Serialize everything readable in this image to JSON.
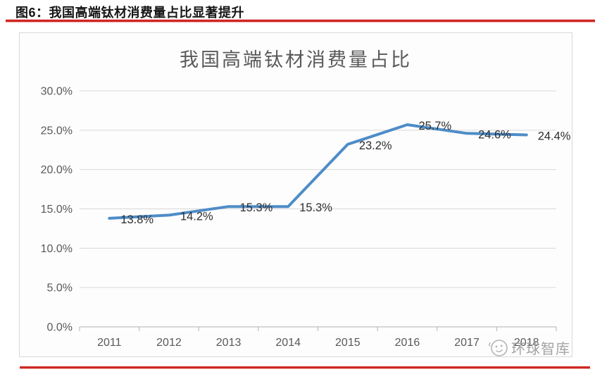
{
  "header": {
    "title": "图6：我国高端钛材消费量占比显著提升"
  },
  "chart_data": {
    "type": "line",
    "title": "我国高端钛材消费量占比",
    "categories": [
      "2011",
      "2012",
      "2013",
      "2014",
      "2015",
      "2016",
      "2017",
      "2018"
    ],
    "values": [
      13.8,
      14.2,
      15.3,
      15.3,
      23.2,
      25.7,
      24.6,
      24.4
    ],
    "data_labels": [
      "13.8%",
      "14.2%",
      "15.3%",
      "15.3%",
      "23.2%",
      "25.7%",
      "24.6%",
      "24.4%"
    ],
    "y_ticks": [
      "0.0%",
      "5.0%",
      "10.0%",
      "15.0%",
      "20.0%",
      "25.0%",
      "30.0%"
    ],
    "ylim": [
      0,
      30
    ],
    "y_step": 5,
    "xlabel": "",
    "ylabel": "",
    "grid": true,
    "legend": "none",
    "line_color": "#4e8cc8"
  },
  "watermark": {
    "icon": "smiley-face-logo",
    "text": "环球智库"
  },
  "colors": {
    "accent_red": "#cf2722",
    "line_blue": "#4e8cc8",
    "gridline": "#d9d9d9",
    "axis": "#b3b3b3",
    "axis_text": "#595959",
    "panel_border": "#d8d8d8"
  }
}
